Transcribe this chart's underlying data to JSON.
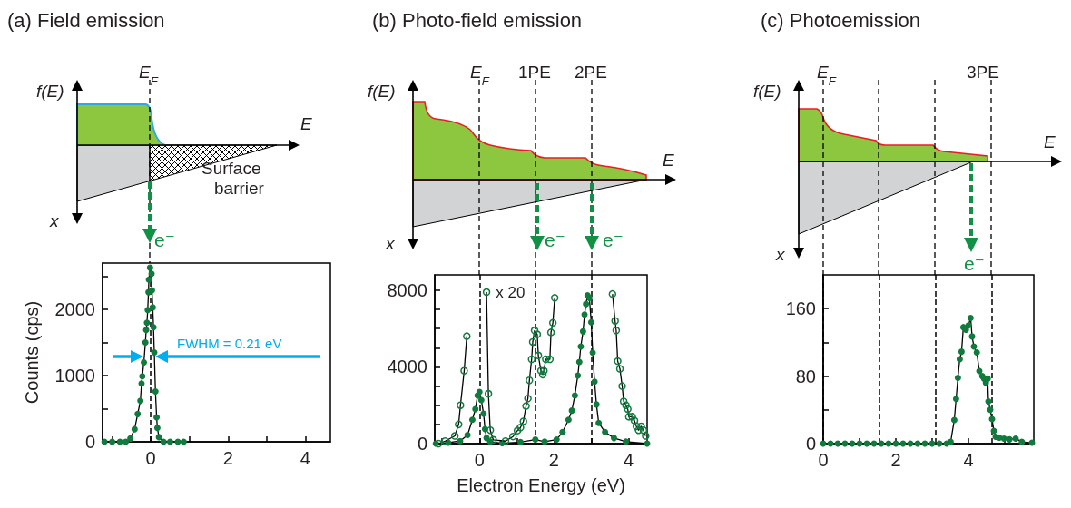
{
  "chart_data": [
    {
      "type": "line",
      "title": "(a) Field emission",
      "ylabel": "Counts (cps)",
      "marker": "circle",
      "line_style": "solid",
      "annotations": [
        "f(E)",
        "E$_{F}$",
        "E",
        "x",
        "Surface barrier",
        "e⁻",
        "FWHM = 0.21 eV"
      ],
      "xlim": [
        -1.25,
        4.65
      ],
      "xticks": [
        {
          "value": -1,
          "label": null
        },
        0,
        {
          "value": 1,
          "label": null
        },
        2,
        {
          "value": 3,
          "label": null
        },
        4
      ],
      "ylim": [
        0,
        2700
      ],
      "yticks": [
        0,
        {
          "value": 500,
          "label": null
        },
        1000,
        {
          "value": 1500,
          "label": null
        },
        2000,
        {
          "value": 2500,
          "label": null
        }
      ],
      "ref_lines": [
        {
          "axis": "x",
          "value": 0,
          "label": null,
          "color": "#000000",
          "line_style": "dashed"
        }
      ],
      "series": [
        {
          "color": "#117a3d",
          "x": [
            -1.2,
            -1.0,
            -0.8,
            -0.65,
            -0.53,
            -0.42,
            -0.34,
            -0.27,
            -0.24,
            -0.22,
            -0.18,
            -0.14,
            -0.12,
            -0.1,
            -0.08,
            -0.06,
            -0.05,
            -0.02,
            0.02,
            0.03,
            0.05,
            0.07,
            0.09,
            0.12,
            0.15,
            0.17,
            0.21,
            0.33,
            0.5,
            0.7,
            0.85
          ],
          "values": [
            0,
            0,
            0,
            0,
            50,
            190,
            420,
            620,
            880,
            990,
            1200,
            1500,
            1690,
            1800,
            1990,
            2260,
            2450,
            2630,
            2540,
            2290,
            2030,
            1730,
            1350,
            760,
            370,
            210,
            70,
            0,
            0,
            0,
            0
          ]
        }
      ]
    },
    {
      "type": "line",
      "title": "(b) Photo-field emission",
      "xlabel": "Electron Energy (eV)",
      "marker": "circle",
      "line_style": "solid",
      "annotations": [
        "f(E)",
        "E$_{F}$",
        "1PE",
        "2PE",
        "E",
        "x",
        "e⁻",
        "e⁻"
      ],
      "xlim": [
        -1.2,
        4.5
      ],
      "xticks": [
        {
          "value": -1,
          "label": null
        },
        0,
        {
          "value": 1,
          "label": null
        },
        2,
        {
          "value": 3,
          "label": null
        },
        4
      ],
      "ylim": [
        0,
        8800
      ],
      "yticks": [
        0,
        {
          "value": 1000,
          "label": null
        },
        {
          "value": 2000,
          "label": null
        },
        {
          "value": 3000,
          "label": null
        },
        4000,
        {
          "value": 5000,
          "label": null
        },
        {
          "value": 6000,
          "label": null
        },
        {
          "value": 7000,
          "label": null
        },
        8000
      ],
      "ref_lines": [
        {
          "axis": "x",
          "value": 0,
          "label": null,
          "color": "#000000",
          "line_style": "dashed"
        },
        {
          "axis": "x",
          "value": 1.5,
          "label": null,
          "color": "#000000",
          "line_style": "dashed"
        },
        {
          "axis": "x",
          "value": 3.0,
          "label": null,
          "color": "#000000",
          "line_style": "dashed"
        }
      ],
      "series": [
        {
          "color": "#117a3d",
          "x": [
            -1.17,
            -0.84,
            -0.52,
            -0.32,
            -0.19,
            -0.11,
            -0.05,
            0.0,
            0.05,
            0.11,
            0.15,
            0.19,
            0.29,
            0.61,
            1.1,
            1.5,
            1.75,
            2.07,
            2.23,
            2.39,
            2.48,
            2.56,
            2.64,
            2.68,
            2.72,
            2.78,
            2.82,
            2.86,
            2.9,
            2.95,
            3.0,
            3.04,
            3.09,
            3.14,
            3.2,
            3.37,
            3.61,
            3.93,
            4.5
          ],
          "values": [
            0,
            50,
            130,
            450,
            1240,
            1800,
            2510,
            2700,
            2270,
            1560,
            760,
            290,
            100,
            20,
            80,
            210,
            100,
            210,
            600,
            1240,
            1720,
            2510,
            3550,
            4260,
            5060,
            5850,
            6730,
            7280,
            7730,
            7600,
            6330,
            4740,
            3230,
            2040,
            1080,
            600,
            290,
            100,
            0
          ]
        },
        {
          "name": "x 20",
          "color": "#117a3d",
          "x": [
            -1.1,
            -0.92,
            -0.66,
            -0.56,
            -0.51,
            -0.41,
            -0.34,
            -0.29,
            0.0,
            0.19,
            0.24,
            0.29,
            0.37,
            0.7,
            0.9,
            1.02,
            1.1,
            1.18,
            1.25,
            1.3,
            1.34,
            1.4,
            1.43,
            1.48,
            1.55,
            1.58,
            1.65,
            1.7,
            1.73,
            1.78,
            1.89,
            1.92,
            1.97,
            2.02,
            2.07,
            2.8,
            3.54,
            3.57,
            3.64,
            3.67,
            3.71,
            3.77,
            3.83,
            3.87,
            3.93,
            3.98,
            4.01,
            4.1,
            4.16,
            4.21,
            4.27,
            4.34,
            4.4,
            4.46
          ],
          "values": [
            0,
            130,
            400,
            1000,
            2000,
            3800,
            5600,
            null,
            null,
            7900,
            2600,
            700,
            200,
            130,
            370,
            680,
            840,
            1160,
            1960,
            2350,
            3300,
            4400,
            5300,
            5900,
            5700,
            4600,
            3800,
            3600,
            3800,
            4400,
            4400,
            5800,
            6300,
            7600,
            null,
            null,
            null,
            7800,
            6400,
            5900,
            4300,
            3900,
            3000,
            2200,
            2000,
            1800,
            1400,
            1400,
            1200,
            900,
            700,
            900,
            700,
            400
          ]
        }
      ]
    },
    {
      "type": "line",
      "title": "(c) Photoemission",
      "marker": "circle",
      "line_style": "solid",
      "annotations": [
        "f(E)",
        "E$_{F}$",
        "3PE",
        "E",
        "x",
        "e⁻"
      ],
      "xlim": [
        0,
        5.8
      ],
      "xticks": [
        0,
        {
          "value": 1,
          "label": null
        },
        2,
        {
          "value": 3,
          "label": null
        },
        4,
        {
          "value": 5,
          "label": null
        }
      ],
      "ylim": [
        0,
        200
      ],
      "yticks": [
        0,
        {
          "value": 40,
          "label": null
        },
        80,
        {
          "value": 120,
          "label": null
        },
        160
      ],
      "ref_lines": [
        {
          "axis": "x",
          "value": 0,
          "label": null,
          "color": "#000000",
          "line_style": "dashed"
        },
        {
          "axis": "x",
          "value": 1.55,
          "label": null,
          "color": "#000000",
          "line_style": "dashed"
        },
        {
          "axis": "x",
          "value": 3.1,
          "label": null,
          "color": "#000000",
          "line_style": "dashed"
        },
        {
          "axis": "x",
          "value": 4.65,
          "label": null,
          "color": "#000000",
          "line_style": "dashed"
        }
      ],
      "series": [
        {
          "color": "#117a3d",
          "x": [
            0,
            0.2,
            0.4,
            0.6,
            0.8,
            1.0,
            1.2,
            1.4,
            1.6,
            1.8,
            2.0,
            2.2,
            2.4,
            2.6,
            2.8,
            3.0,
            3.2,
            3.4,
            3.51,
            3.61,
            3.66,
            3.71,
            3.76,
            3.81,
            3.86,
            3.93,
            4.0,
            4.06,
            4.1,
            4.15,
            4.23,
            4.3,
            4.38,
            4.43,
            4.48,
            4.53,
            4.55,
            4.6,
            4.65,
            4.7,
            4.75,
            4.85,
            4.98,
            5.13,
            5.3,
            5.47,
            5.75
          ],
          "values": [
            0,
            0,
            0,
            0,
            0,
            0,
            0,
            0,
            0,
            0,
            0,
            0,
            0,
            0,
            0,
            0,
            0,
            0,
            2,
            28,
            53,
            78,
            100,
            109,
            138,
            135,
            140,
            149,
            127,
            115,
            108,
            86,
            80,
            77,
            72,
            77,
            50,
            40,
            29,
            15,
            8,
            7,
            6,
            5,
            6,
            2,
            1
          ]
        }
      ]
    }
  ]
}
